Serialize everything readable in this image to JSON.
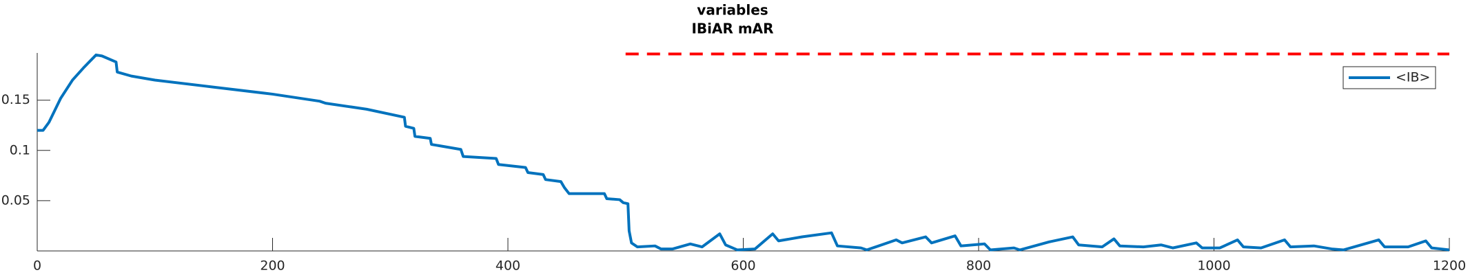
{
  "chart_data": {
    "type": "line",
    "title": "variables",
    "subtitle": "IBiAR mAR",
    "xlim": [
      0,
      1200
    ],
    "xticks": [
      0,
      200,
      400,
      600,
      800,
      1000,
      1200
    ],
    "ylim": [
      0,
      0.197
    ],
    "yticks": [
      0.05,
      0.1,
      0.15
    ],
    "legend": "northeast",
    "series": [
      {
        "name": "<IB>",
        "color": "#0072bd",
        "x": [
          0,
          5,
          10,
          20,
          30,
          40,
          50,
          55,
          67,
          68,
          80,
          100,
          150,
          200,
          240,
          245,
          280,
          312,
          313,
          320,
          321,
          334,
          335,
          360,
          362,
          390,
          392,
          415,
          417,
          430,
          432,
          445,
          448,
          452,
          482,
          484,
          495,
          498,
          502,
          503,
          505,
          510,
          525,
          530,
          540,
          555,
          565,
          580,
          585,
          595,
          610,
          625,
          630,
          650,
          675,
          680,
          700,
          705,
          730,
          735,
          755,
          760,
          780,
          785,
          805,
          810,
          830,
          835,
          860,
          880,
          885,
          905,
          915,
          920,
          940,
          955,
          965,
          985,
          990,
          1005,
          1020,
          1025,
          1040,
          1060,
          1065,
          1085,
          1100,
          1110,
          1140,
          1145,
          1165,
          1180,
          1185,
          1200
        ],
        "values": [
          0.12,
          0.12,
          0.128,
          0.152,
          0.17,
          0.183,
          0.195,
          0.194,
          0.188,
          0.178,
          0.174,
          0.17,
          0.163,
          0.156,
          0.149,
          0.147,
          0.141,
          0.133,
          0.124,
          0.122,
          0.114,
          0.112,
          0.106,
          0.101,
          0.094,
          0.092,
          0.086,
          0.083,
          0.078,
          0.076,
          0.071,
          0.069,
          0.063,
          0.057,
          0.057,
          0.052,
          0.051,
          0.048,
          0.047,
          0.02,
          0.008,
          0.004,
          0.005,
          0.002,
          0.002,
          0.007,
          0.004,
          0.017,
          0.006,
          0.001,
          0.002,
          0.017,
          0.01,
          0.014,
          0.018,
          0.005,
          0.003,
          0.001,
          0.011,
          0.008,
          0.014,
          0.008,
          0.015,
          0.005,
          0.007,
          0.001,
          0.003,
          0.001,
          0.009,
          0.014,
          0.006,
          0.004,
          0.012,
          0.005,
          0.004,
          0.006,
          0.003,
          0.008,
          0.003,
          0.003,
          0.011,
          0.004,
          0.003,
          0.011,
          0.004,
          0.005,
          0.002,
          0.001,
          0.011,
          0.004,
          0.004,
          0.01,
          0.003,
          0.001
        ]
      }
    ],
    "reference_lines": [
      {
        "y": 0.196,
        "x": [
          500,
          1200
        ],
        "color": "#ff0000",
        "dashed": true
      }
    ]
  }
}
